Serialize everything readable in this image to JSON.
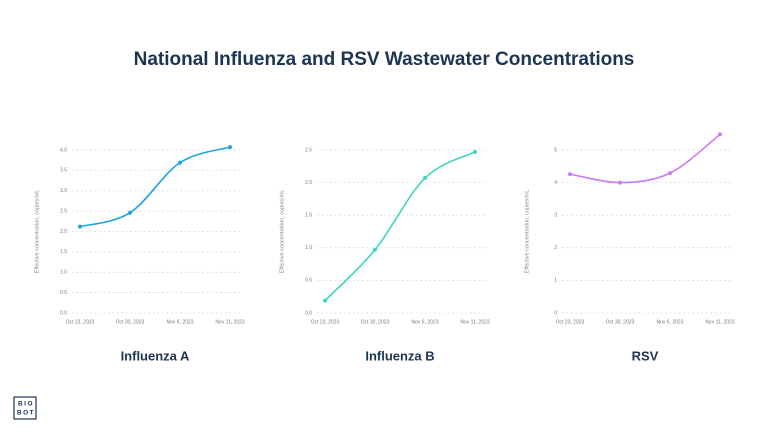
{
  "title": "National Influenza and RSV Wastewater Concentrations",
  "logo": [
    "BIO",
    "BOT"
  ],
  "chart_data": [
    {
      "type": "line",
      "title": "Influenza A",
      "ylabel": "Effective concentration, copies/mL",
      "x": [
        "Oct 23, 2023",
        "Oct 30, 2023",
        "Nov 6, 2023",
        "Nov 11, 2023"
      ],
      "series": [
        {
          "name": "Influenza A",
          "color": "#1aa3e0",
          "values": [
            2.12,
            2.46,
            3.69,
            4.07
          ]
        }
      ],
      "ylim": [
        0,
        4
      ],
      "yticks": [
        {
          "value": 0,
          "label": "0.0"
        },
        0.5,
        {
          "value": 1,
          "label": "1.0"
        },
        1.5,
        {
          "value": 2,
          "label": "2.0"
        },
        2.5,
        {
          "value": 3,
          "label": "3.0"
        },
        3.5,
        {
          "value": 4,
          "label": "4.0"
        }
      ],
      "grid": true
    },
    {
      "type": "line",
      "title": "Influenza B",
      "ylabel": "Effective concentration, copies/mL",
      "x": [
        "Oct 23, 2023",
        "Oct 30, 2023",
        "Nov 6, 2023",
        "Nov 11, 2023"
      ],
      "series": [
        {
          "name": "Influenza B",
          "color": "#3dd6c0",
          "values": [
            0.19,
            0.97,
            2.07,
            2.47
          ]
        }
      ],
      "ylim": [
        0,
        2.5
      ],
      "yticks": [
        {
          "value": 0,
          "label": "0.0"
        },
        0.5,
        {
          "value": 1,
          "label": "1.0"
        },
        1.5,
        {
          "value": 2,
          "label": "2.0"
        },
        2.5
      ],
      "grid": true
    },
    {
      "type": "line",
      "title": "RSV",
      "ylabel": "Effective concentration, copies/mL",
      "x": [
        "Oct 23, 2023",
        "Oct 30, 2023",
        "Nov 6, 2023",
        "Nov 11, 2023"
      ],
      "series": [
        {
          "name": "RSV",
          "color": "#c77cf2",
          "values": [
            4.26,
            4.0,
            4.29,
            5.48
          ]
        }
      ],
      "ylim": [
        0,
        5
      ],
      "yticks": [
        0,
        1,
        2,
        3,
        4,
        5
      ],
      "grid": true
    }
  ]
}
